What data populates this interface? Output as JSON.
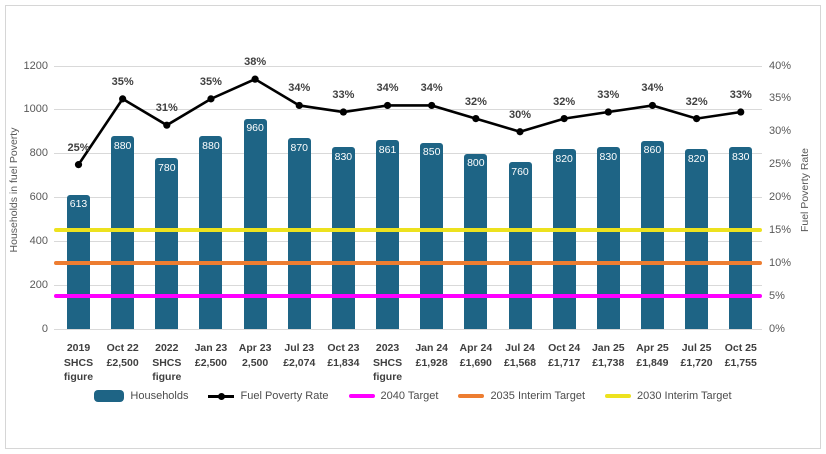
{
  "chart_data": {
    "type": "bar",
    "subtype": "combo-bar-line",
    "title": "",
    "grid": true,
    "categories": [
      [
        "2019",
        "SHCS",
        "figure"
      ],
      [
        "Oct 22",
        "£2,500"
      ],
      [
        "2022",
        "SHCS",
        "figure"
      ],
      [
        "Jan 23",
        "£2,500"
      ],
      [
        "Apr 23",
        "2,500"
      ],
      [
        "Jul 23",
        "£2,074"
      ],
      [
        "Oct 23",
        "£1,834"
      ],
      [
        "2023",
        "SHCS",
        "figure"
      ],
      [
        "Jan 24",
        "£1,928"
      ],
      [
        "Apr 24",
        "£1,690"
      ],
      [
        "Jul 24",
        "£1,568"
      ],
      [
        "Oct 24",
        "£1,717"
      ],
      [
        "Jan 25",
        "£1,738"
      ],
      [
        "Apr 25",
        "£1,849"
      ],
      [
        "Jul 25",
        "£1,720"
      ],
      [
        "Oct 25",
        "£1,755"
      ]
    ],
    "series": [
      {
        "name": "Households",
        "type": "bar",
        "axis": "left",
        "color": "#1E6485",
        "values": [
          613,
          880,
          780,
          880,
          960,
          870,
          830,
          861,
          850,
          800,
          760,
          820,
          830,
          860,
          820,
          830
        ],
        "data_labels": [
          "613",
          "880",
          "780",
          "880",
          "960",
          "870",
          "830",
          "861",
          "850",
          "800",
          "760",
          "820",
          "830",
          "860",
          "820",
          "830"
        ]
      },
      {
        "name": "Fuel Poverty Rate",
        "type": "line",
        "axis": "right",
        "color": "#000000",
        "values_pct": [
          25,
          35,
          31,
          35,
          38,
          34,
          33,
          34,
          34,
          32,
          30,
          32,
          33,
          34,
          32,
          33
        ],
        "data_labels": [
          "25%",
          "35%",
          "31%",
          "35%",
          "38%",
          "34%",
          "33%",
          "34%",
          "34%",
          "32%",
          "30%",
          "32%",
          "33%",
          "34%",
          "32%",
          "33%"
        ]
      }
    ],
    "target_lines": [
      {
        "name": "2040 Target",
        "value_pct": 5,
        "color": "#FF00FF"
      },
      {
        "name": "2035 Interim Target",
        "value_pct": 10,
        "color": "#ED7D31"
      },
      {
        "name": "2030 Interim Target",
        "value_pct": 15,
        "color": "#EDE21E"
      }
    ],
    "left_axis": {
      "title": "Households in fuel Poverty",
      "range": [
        0,
        1200
      ],
      "tick_interval": 200,
      "tick_labels": [
        "0",
        "200",
        "400",
        "600",
        "800",
        "1000",
        "1200"
      ]
    },
    "right_axis": {
      "title": "Fuel Poverty Rate",
      "range_pct": [
        0,
        40
      ],
      "tick_interval_pct": 5,
      "tick_labels": [
        "0%",
        "5%",
        "10%",
        "15%",
        "20%",
        "25%",
        "30%",
        "35%",
        "40%"
      ]
    },
    "legend": {
      "position": "bottom",
      "items": [
        {
          "label": "Households",
          "swatch": "bar",
          "color": "#1E6485"
        },
        {
          "label": "Fuel Poverty Rate",
          "swatch": "line-marker",
          "color": "#000000"
        },
        {
          "label": "2040 Target",
          "swatch": "line",
          "color": "#FF00FF"
        },
        {
          "label": "2035 Interim Target",
          "swatch": "line",
          "color": "#ED7D31"
        },
        {
          "label": "2030 Interim Target",
          "swatch": "line",
          "color": "#EDE21E"
        }
      ]
    },
    "gridline_color": "#D9D9D9",
    "frame_border_color": "#D6D6D6"
  }
}
